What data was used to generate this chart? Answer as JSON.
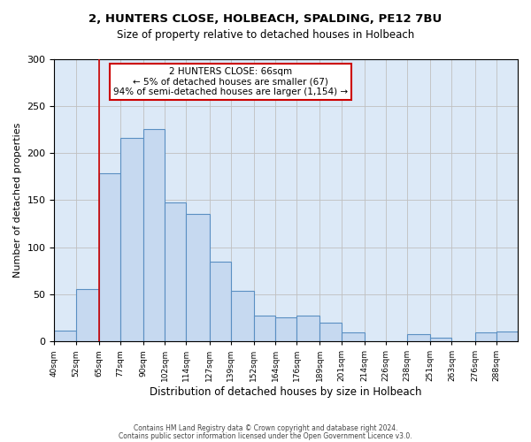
{
  "title": "2, HUNTERS CLOSE, HOLBEACH, SPALDING, PE12 7BU",
  "subtitle": "Size of property relative to detached houses in Holbeach",
  "xlabel": "Distribution of detached houses by size in Holbeach",
  "ylabel": "Number of detached properties",
  "bin_labels": [
    "40sqm",
    "52sqm",
    "65sqm",
    "77sqm",
    "90sqm",
    "102sqm",
    "114sqm",
    "127sqm",
    "139sqm",
    "152sqm",
    "164sqm",
    "176sqm",
    "189sqm",
    "201sqm",
    "214sqm",
    "226sqm",
    "238sqm",
    "251sqm",
    "263sqm",
    "276sqm",
    "288sqm"
  ],
  "bin_edges": [
    40,
    52,
    65,
    77,
    90,
    102,
    114,
    127,
    139,
    152,
    164,
    176,
    189,
    201,
    214,
    226,
    238,
    251,
    263,
    276,
    288,
    300
  ],
  "bar_heights": [
    11,
    55,
    178,
    216,
    225,
    147,
    135,
    85,
    54,
    27,
    25,
    27,
    20,
    9,
    0,
    0,
    8,
    4,
    0,
    9,
    10
  ],
  "bar_color": "#c6d9f0",
  "bar_edge_color": "#5a8fc2",
  "bar_linewidth": 0.8,
  "grid_color": "#c0c0c0",
  "bg_color": "#dce9f7",
  "ylim": [
    0,
    300
  ],
  "yticks": [
    0,
    50,
    100,
    150,
    200,
    250,
    300
  ],
  "property_line_x": 65,
  "property_line_color": "#cc0000",
  "annotation_line1": "2 HUNTERS CLOSE: 66sqm",
  "annotation_line2": "← 5% of detached houses are smaller (67)",
  "annotation_line3": "94% of semi-detached houses are larger (1,154) →",
  "annotation_box_color": "#ffffff",
  "annotation_box_edge": "#cc0000",
  "footer1": "Contains HM Land Registry data © Crown copyright and database right 2024.",
  "footer2": "Contains public sector information licensed under the Open Government Licence v3.0."
}
